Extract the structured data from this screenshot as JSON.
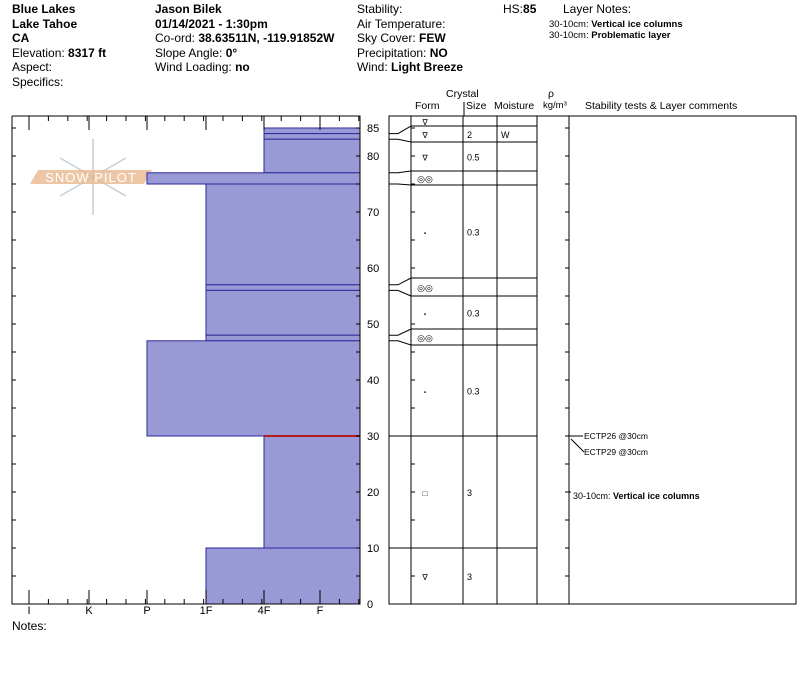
{
  "header": {
    "location": "Blue Lakes",
    "range": "Lake Tahoe",
    "state": "CA",
    "elevation_label": "Elevation:",
    "elevation": "8317 ft",
    "aspect_label": "Aspect:",
    "specifics_label": "Specifics:",
    "observer": "Jason Bilek",
    "datetime": "01/14/2021 - 1:30pm",
    "coord_label": "Co-ord:",
    "coord": "38.63511N, -119.91852W",
    "slope_label": "Slope Angle:",
    "slope": "0°",
    "wind_loading_label": "Wind Loading:",
    "wind_loading": "no",
    "stability_label": "Stability:",
    "air_temp_label": "Air Temperature:",
    "sky_label": "Sky Cover:",
    "sky": "FEW",
    "precip_label": "Precipitation:",
    "precip": "NO",
    "wind_label": "Wind:",
    "wind": "Light Breeze",
    "hs_label": "HS:",
    "hs": "85",
    "layer_notes_label": "Layer Notes:",
    "layer_notes": [
      {
        "range": "30-10cm:",
        "text": "Vertical ice columns"
      },
      {
        "range": "30-10cm:",
        "text": "Problematic layer"
      }
    ]
  },
  "table_headers": {
    "crystal": "Crystal",
    "form": "Form",
    "size": "Size",
    "moisture": "Moisture",
    "rho": "ρ",
    "density_unit": "kg/m³",
    "comments": "Stability tests & Layer comments"
  },
  "notes_label": "Notes:",
  "watermark": "SNOW PILOT",
  "chart_data": {
    "type": "snow-profile",
    "hardness_categories": [
      "I",
      "K",
      "P",
      "1F",
      "4F",
      "F"
    ],
    "depth_ticks": [
      "0",
      "10",
      "20",
      "30",
      "40",
      "50",
      "60",
      "70",
      "80",
      "85"
    ],
    "depth_range": [
      0,
      85
    ],
    "colors": {
      "layer_fill": "#9999d6",
      "layer_line": "#2a2a9a",
      "critical_line": "#b02020"
    },
    "layers": [
      {
        "top": 85,
        "bottom": 84,
        "hardness": "4F",
        "form": "DF",
        "size": "",
        "moisture": ""
      },
      {
        "top": 84,
        "bottom": 83,
        "hardness": "4F",
        "form": "DF",
        "size": "2",
        "moisture": "W"
      },
      {
        "top": 83,
        "bottom": 77,
        "hardness": "4F",
        "form": "DF",
        "size": "0.5",
        "moisture": ""
      },
      {
        "top": 77,
        "bottom": 75,
        "hardness": "P",
        "form": "MF",
        "size": "",
        "moisture": ""
      },
      {
        "top": 75,
        "bottom": 57,
        "hardness": "1F",
        "form": "RG",
        "size": "0.3",
        "moisture": ""
      },
      {
        "top": 57,
        "bottom": 56,
        "hardness": "1F",
        "form": "MF",
        "size": "",
        "moisture": ""
      },
      {
        "top": 56,
        "bottom": 48,
        "hardness": "1F",
        "form": "RG",
        "size": "0.3",
        "moisture": ""
      },
      {
        "top": 48,
        "bottom": 47,
        "hardness": "1F",
        "form": "MF",
        "size": "",
        "moisture": ""
      },
      {
        "top": 47,
        "bottom": 30,
        "hardness": "P",
        "form": "RG",
        "size": "0.3",
        "moisture": ""
      },
      {
        "top": 30,
        "bottom": 10,
        "hardness": "4F",
        "form": "FC",
        "size": "3",
        "moisture": ""
      },
      {
        "top": 10,
        "bottom": 0,
        "hardness": "1F",
        "form": "DF",
        "size": "3",
        "moisture": ""
      }
    ],
    "critical_depth": 30,
    "stability_tests": [
      "ECTP26 @30cm",
      "ECTP29 @30cm"
    ],
    "layer_comment": {
      "range": "30-10cm:",
      "text": "Vertical ice columns"
    }
  }
}
